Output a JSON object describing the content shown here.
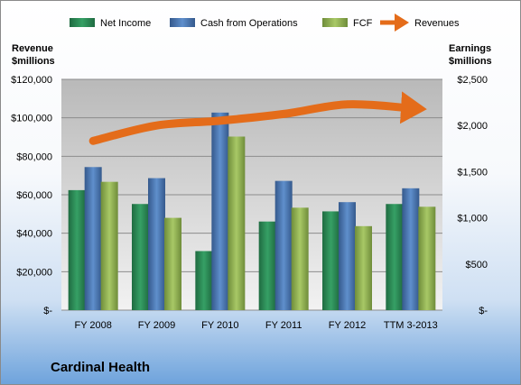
{
  "chart_data": {
    "type": "bar",
    "title": "",
    "categories": [
      "FY 2008",
      "FY 2009",
      "FY 2010",
      "FY 2011",
      "FY 2012",
      "TTM 3-2013"
    ],
    "series": [
      {
        "name": "Net Income",
        "axis": "right",
        "color": "#2e8b57",
        "values": [
          1300,
          1150,
          640,
          960,
          1070,
          1150
        ]
      },
      {
        "name": "Cash from Operations",
        "axis": "right",
        "color": "#4f81bd",
        "values": [
          1550,
          1430,
          2140,
          1400,
          1170,
          1320
        ]
      },
      {
        "name": "FCF",
        "axis": "right",
        "color": "#9bbb59",
        "values": [
          1390,
          1000,
          1880,
          1110,
          910,
          1120
        ]
      },
      {
        "name": "Revenues",
        "axis": "left",
        "type": "line",
        "color": "#e46c1a",
        "values": [
          88000,
          96000,
          98500,
          102000,
          107000,
          105000
        ]
      }
    ],
    "left_axis": {
      "label_line1": "Revenue",
      "label_line2": "$millions",
      "min": 0,
      "max": 120000,
      "step": 20000,
      "tick_labels": [
        "$-",
        "$20,000",
        "$40,000",
        "$60,000",
        "$80,000",
        "$100,000",
        "$120,000"
      ]
    },
    "right_axis": {
      "label_line1": "Earnings",
      "label_line2": "$millions",
      "min": 0,
      "max": 2500,
      "step": 500,
      "tick_labels": [
        "$-",
        "$500",
        "$1,000",
        "$1,500",
        "$2,000",
        "$2,500"
      ]
    },
    "grid": true,
    "legend_position": "top"
  },
  "company_name": "Cardinal Health",
  "colors": {
    "plot_background_top": "#b9b9b9",
    "plot_background_bottom": "#f2f2f2",
    "gridline": "#8c8c8c"
  }
}
